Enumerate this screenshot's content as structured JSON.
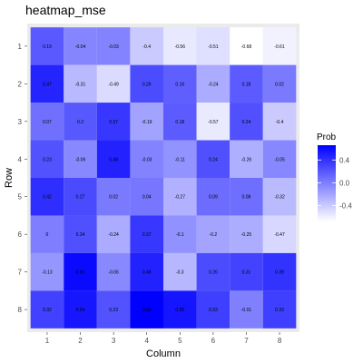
{
  "chart_data": {
    "type": "heatmap",
    "title": "heatmap_mse",
    "xlabel": "Column",
    "ylabel": "Row",
    "columns": [
      "1",
      "2",
      "3",
      "4",
      "5",
      "6",
      "7",
      "8"
    ],
    "rows": [
      "1",
      "2",
      "3",
      "4",
      "5",
      "6",
      "7",
      "8"
    ],
    "values": [
      [
        0.19,
        -0.04,
        -0.03,
        -0.4,
        -0.56,
        -0.51,
        -0.68,
        -0.61
      ],
      [
        0.47,
        -0.31,
        -0.49,
        0.26,
        0.16,
        -0.24,
        0.18,
        0.02
      ],
      [
        0.07,
        0.2,
        0.37,
        -0.19,
        0.18,
        -0.57,
        0.24,
        -0.4
      ],
      [
        0.23,
        -0.06,
        0.48,
        -0.03,
        -0.11,
        0.24,
        -0.26,
        -0.05
      ],
      [
        0.42,
        0.27,
        0.02,
        0.04,
        -0.27,
        0.09,
        0.08,
        -0.32
      ],
      [
        0,
        0.24,
        -0.24,
        0.37,
        -0.1,
        -0.2,
        -0.25,
        -0.47
      ],
      [
        -0.13,
        0.61,
        -0.06,
        0.48,
        -0.3,
        0.26,
        0.31,
        0.39
      ],
      [
        0.32,
        0.54,
        0.23,
        0.66,
        0.55,
        0.33,
        -0.01,
        0.33
      ]
    ],
    "value_range": [
      -0.68,
      0.66
    ],
    "legend": {
      "title": "Prob",
      "ticks": [
        0.4,
        0.0,
        -0.4
      ],
      "tick_labels": [
        "0.4",
        "0.0",
        "-0.4"
      ],
      "placement": "right"
    },
    "colors": {
      "low": "#ffffff",
      "high": "#0000ff",
      "panel_background": "#ebebeb"
    },
    "grid": true
  }
}
